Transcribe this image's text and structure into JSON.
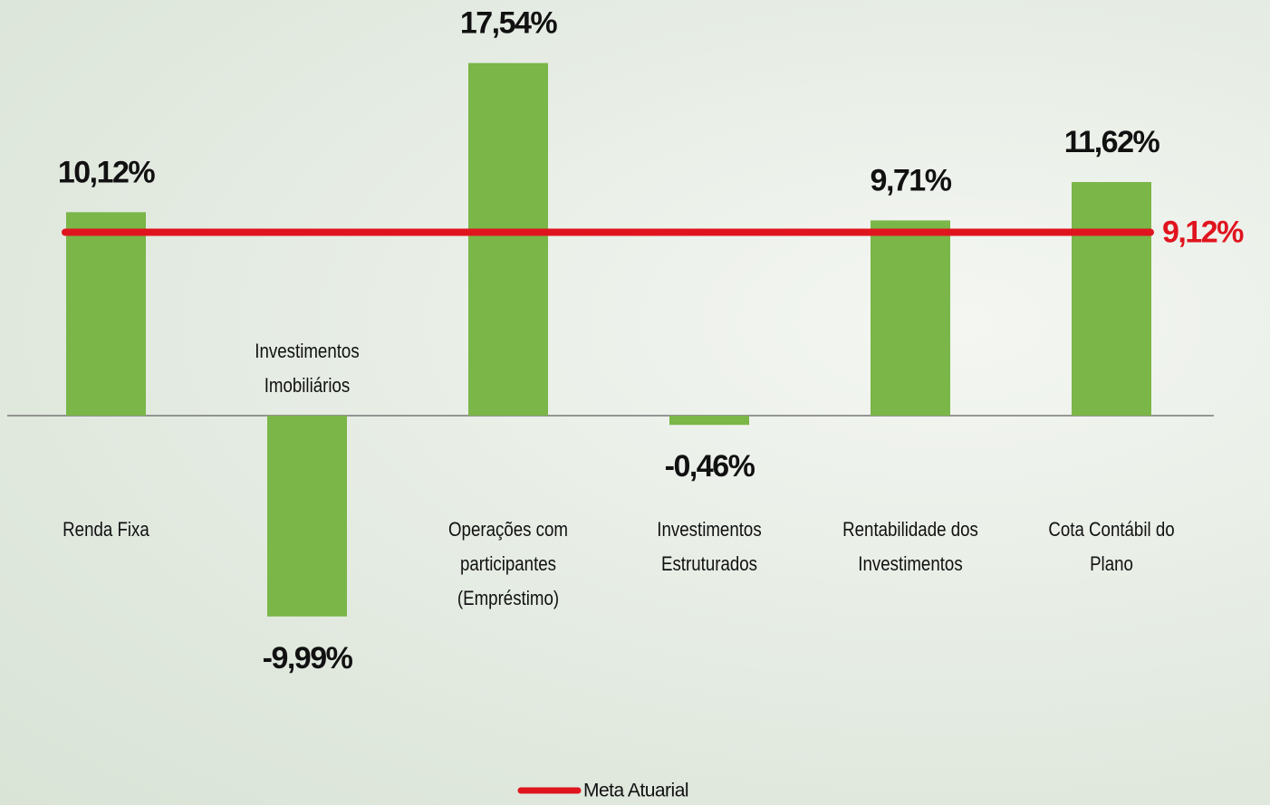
{
  "chart_data": {
    "type": "bar",
    "categories": [
      "Renda Fixa",
      "Investimentos\nImobiliários",
      "Operações com\nparticipantes\n(Empréstimo)",
      "Investimentos\nEstruturados",
      "Rentabilidade dos\nInvestimentos",
      "Cota Contábil do\nPlano"
    ],
    "values": [
      10.12,
      -9.99,
      17.54,
      -0.46,
      9.71,
      11.62
    ],
    "value_labels": [
      "10,12%",
      "-9,99%",
      "17,54%",
      "-0,46%",
      "9,71%",
      "11,62%"
    ],
    "color": "#7ab648",
    "ylim": [
      -15,
      20
    ],
    "reference_line": {
      "name": "Meta Atuarial",
      "value": 9.12,
      "label": "9,12%",
      "color": "#e0141e"
    },
    "legend": "bottom"
  }
}
